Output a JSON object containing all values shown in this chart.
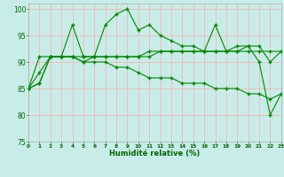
{
  "xlabel": "Humidité relative (%)",
  "bg_color": "#c8ede8",
  "grid_color": "#ffaaaa",
  "line_color": "#008800",
  "xlim": [
    0,
    23
  ],
  "ylim": [
    75,
    101
  ],
  "yticks": [
    75,
    80,
    85,
    90,
    95,
    100
  ],
  "xticks": [
    0,
    1,
    2,
    3,
    4,
    5,
    6,
    7,
    8,
    9,
    10,
    11,
    12,
    13,
    14,
    15,
    16,
    17,
    18,
    19,
    20,
    21,
    22,
    23
  ],
  "series": [
    [
      85,
      86,
      91,
      91,
      97,
      91,
      91,
      97,
      99,
      100,
      96,
      97,
      95,
      94,
      93,
      93,
      92,
      97,
      92,
      93,
      93,
      90,
      80,
      84
    ],
    [
      85,
      91,
      91,
      91,
      91,
      90,
      91,
      91,
      91,
      91,
      91,
      91,
      92,
      92,
      92,
      92,
      92,
      92,
      92,
      92,
      93,
      93,
      90,
      92
    ],
    [
      85,
      88,
      91,
      91,
      91,
      91,
      91,
      91,
      91,
      91,
      91,
      92,
      92,
      92,
      92,
      92,
      92,
      92,
      92,
      92,
      92,
      92,
      92,
      92
    ],
    [
      85,
      86,
      91,
      91,
      91,
      90,
      90,
      90,
      89,
      89,
      88,
      87,
      87,
      87,
      86,
      86,
      86,
      85,
      85,
      85,
      84,
      84,
      83,
      84
    ]
  ]
}
